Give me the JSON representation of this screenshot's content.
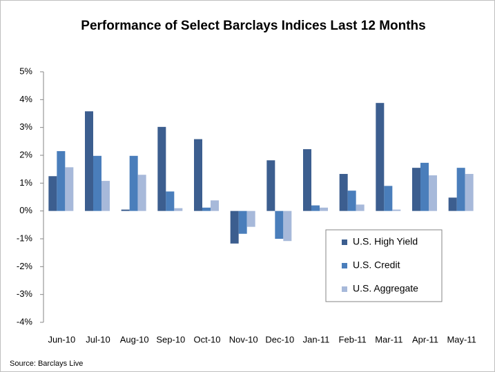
{
  "chart_data": {
    "type": "bar",
    "title": "Performance of Select Barclays Indices Last 12 Months",
    "source": "Source: Barclays Live",
    "categories": [
      "Jun-10",
      "Jul-10",
      "Aug-10",
      "Sep-10",
      "Oct-10",
      "Nov-10",
      "Dec-10",
      "Jan-11",
      "Feb-11",
      "Mar-11",
      "Apr-11",
      "May-11"
    ],
    "series": [
      {
        "name": "U.S. High Yield",
        "color": "#3c5e8f",
        "values": [
          1.25,
          3.58,
          0.05,
          3.02,
          2.58,
          -1.17,
          1.82,
          2.22,
          1.33,
          3.88,
          1.55,
          0.48
        ]
      },
      {
        "name": "U.S. Credit",
        "color": "#4a7ebb",
        "values": [
          2.15,
          1.98,
          1.98,
          0.7,
          0.12,
          -0.82,
          -1.0,
          0.2,
          0.73,
          0.9,
          1.73,
          1.55
        ]
      },
      {
        "name": "U.S. Aggregate",
        "color": "#a7b9da",
        "values": [
          1.57,
          1.08,
          1.3,
          0.1,
          0.38,
          -0.57,
          -1.08,
          0.12,
          0.23,
          0.05,
          1.28,
          1.33
        ]
      }
    ],
    "ylim": [
      -4,
      5
    ],
    "yticks": [
      {
        "value": -4,
        "label": "-4%"
      },
      {
        "value": -3,
        "label": "-3%"
      },
      {
        "value": -2,
        "label": "-2%"
      },
      {
        "value": -1,
        "label": "-1%"
      },
      {
        "value": 0,
        "label": "0%"
      },
      {
        "value": 1,
        "label": "1%"
      },
      {
        "value": 2,
        "label": "2%"
      },
      {
        "value": 3,
        "label": "3%"
      },
      {
        "value": 4,
        "label": "4%"
      },
      {
        "value": 5,
        "label": "5%"
      }
    ],
    "grid": false,
    "legend": "lower right"
  }
}
